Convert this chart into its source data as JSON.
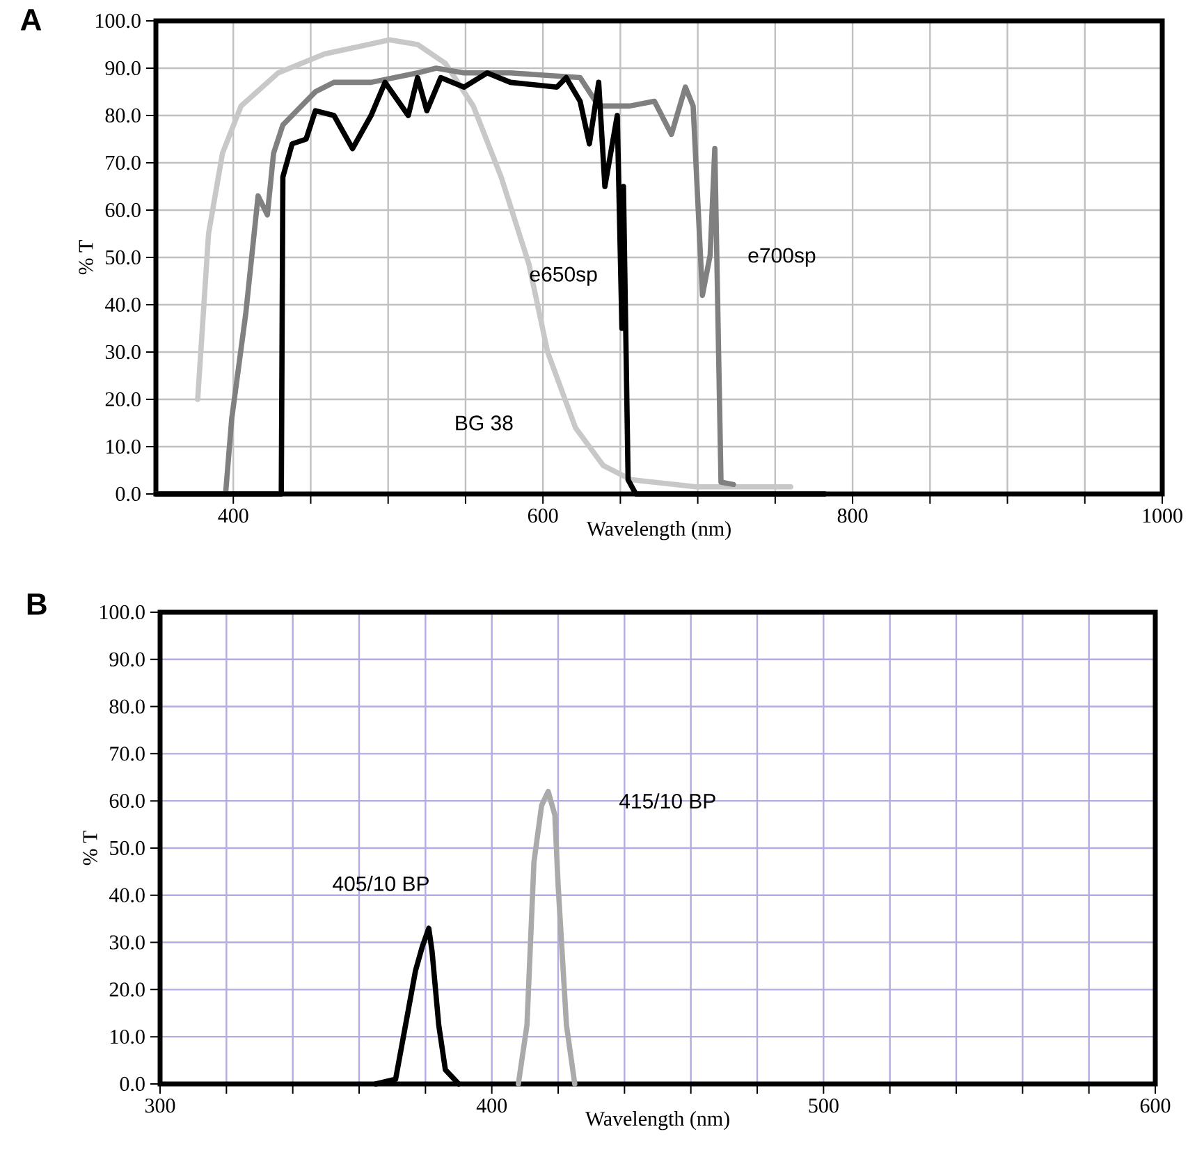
{
  "chart_data": [
    {
      "type": "line",
      "xlabel": "Wavelength (nm)",
      "ylabel": "% T",
      "xlim": [
        350,
        1000
      ],
      "ylim": [
        0,
        100
      ],
      "grid": true,
      "marker": "none",
      "line_style": "solid",
      "xticks": [
        {
          "value": 400,
          "label": "400"
        },
        {
          "value": 450,
          "label": null
        },
        {
          "value": 500,
          "label": null
        },
        {
          "value": 550,
          "label": null
        },
        {
          "value": 600,
          "label": "600"
        },
        {
          "value": 650,
          "label": null
        },
        {
          "value": 700,
          "label": null
        },
        {
          "value": 750,
          "label": null
        },
        {
          "value": 800,
          "label": "800"
        },
        {
          "value": 850,
          "label": null
        },
        {
          "value": 900,
          "label": null
        },
        {
          "value": 950,
          "label": null
        },
        {
          "value": 1000,
          "label": "1000"
        }
      ],
      "yticks": [
        {
          "value": 0,
          "label": "0.0"
        },
        {
          "value": 10,
          "label": "10.0"
        },
        {
          "value": 20,
          "label": "20.0"
        },
        {
          "value": 30,
          "label": "30.0"
        },
        {
          "value": 40,
          "label": "40.0"
        },
        {
          "value": 50,
          "label": "50.0"
        },
        {
          "value": 60,
          "label": "60.0"
        },
        {
          "value": 70,
          "label": "70.0"
        },
        {
          "value": 80,
          "label": "80.0"
        },
        {
          "value": 90,
          "label": "90.0"
        },
        {
          "value": 100,
          "label": "100.0"
        }
      ],
      "series": [
        {
          "color": "#c8c8c8",
          "x": [
            377,
            384,
            393,
            405,
            429,
            459,
            501,
            519,
            537,
            555,
            573,
            591,
            603,
            621,
            639,
            657,
            699,
            760
          ],
          "values": [
            20,
            55,
            72,
            82,
            89,
            93,
            96,
            95,
            91,
            82,
            67,
            48.5,
            30,
            14,
            6,
            3,
            1.5,
            1.5
          ]
        },
        {
          "color": "#808080",
          "x": [
            350,
            395,
            399,
            408,
            416,
            422,
            426,
            432,
            441,
            453,
            465,
            489,
            519,
            531,
            549,
            579,
            624,
            636,
            656,
            672,
            683,
            692,
            697,
            703,
            708,
            711,
            715,
            723
          ],
          "values": [
            0,
            0,
            16,
            38,
            63,
            59,
            72,
            78,
            81,
            85,
            87,
            87,
            89,
            90,
            89,
            89,
            88,
            82,
            82,
            83,
            76,
            86,
            82,
            42,
            50.5,
            73,
            2.5,
            2
          ]
        },
        {
          "color": "#000000",
          "x": [
            350,
            431,
            432,
            438,
            447,
            453,
            465,
            477,
            489,
            498,
            513,
            519,
            525,
            534,
            549,
            564,
            579,
            609,
            615,
            624,
            630,
            636,
            640,
            648,
            651,
            652,
            655,
            660,
            782
          ],
          "values": [
            0,
            0,
            67,
            74,
            75,
            81,
            80,
            73,
            80,
            87,
            80,
            88,
            81,
            88,
            86,
            89,
            87,
            86,
            88,
            83,
            74,
            87,
            65,
            80,
            35,
            65,
            3,
            0,
            0
          ]
        }
      ],
      "annotations": [
        "A",
        "e650sp",
        "e700sp",
        "BG 38"
      ]
    },
    {
      "type": "line",
      "xlabel": "Wavelength (nm)",
      "ylabel": "% T",
      "xlim": [
        300,
        600
      ],
      "ylim": [
        0,
        100
      ],
      "grid": true,
      "marker": "none",
      "line_style": "solid",
      "xticks": [
        {
          "value": 300,
          "label": "300"
        },
        {
          "value": 320,
          "label": null
        },
        {
          "value": 340,
          "label": null
        },
        {
          "value": 360,
          "label": null
        },
        {
          "value": 380,
          "label": null
        },
        {
          "value": 400,
          "label": "400"
        },
        {
          "value": 420,
          "label": null
        },
        {
          "value": 440,
          "label": null
        },
        {
          "value": 460,
          "label": null
        },
        {
          "value": 480,
          "label": null
        },
        {
          "value": 500,
          "label": "500"
        },
        {
          "value": 520,
          "label": null
        },
        {
          "value": 540,
          "label": null
        },
        {
          "value": 560,
          "label": null
        },
        {
          "value": 580,
          "label": null
        },
        {
          "value": 600,
          "label": "600"
        }
      ],
      "yticks": [
        {
          "value": 0,
          "label": "0.0"
        },
        {
          "value": 10,
          "label": "10.0"
        },
        {
          "value": 20,
          "label": "20.0"
        },
        {
          "value": 30,
          "label": "30.0"
        },
        {
          "value": 40,
          "label": "40.0"
        },
        {
          "value": 50,
          "label": "50.0"
        },
        {
          "value": 60,
          "label": "60.0"
        },
        {
          "value": 70,
          "label": "70.0"
        },
        {
          "value": 80,
          "label": "80.0"
        },
        {
          "value": 90,
          "label": "90.0"
        },
        {
          "value": 100,
          "label": "100.0"
        }
      ],
      "series": [
        {
          "color": "#000000",
          "x": [
            365,
            371,
            374,
            377,
            379,
            381,
            382,
            384,
            386,
            390
          ],
          "values": [
            0,
            1,
            12.5,
            24,
            29,
            33,
            28,
            12.5,
            3,
            0
          ]
        },
        {
          "color": "#aaaaaa",
          "x": [
            408,
            410.6,
            412.7,
            415,
            417,
            419,
            420,
            422.5,
            425
          ],
          "values": [
            0,
            12.5,
            47,
            59,
            62,
            57,
            42,
            12.5,
            0
          ]
        }
      ],
      "annotations": [
        "B",
        "405/10 BP",
        "415/10 BP"
      ]
    }
  ]
}
